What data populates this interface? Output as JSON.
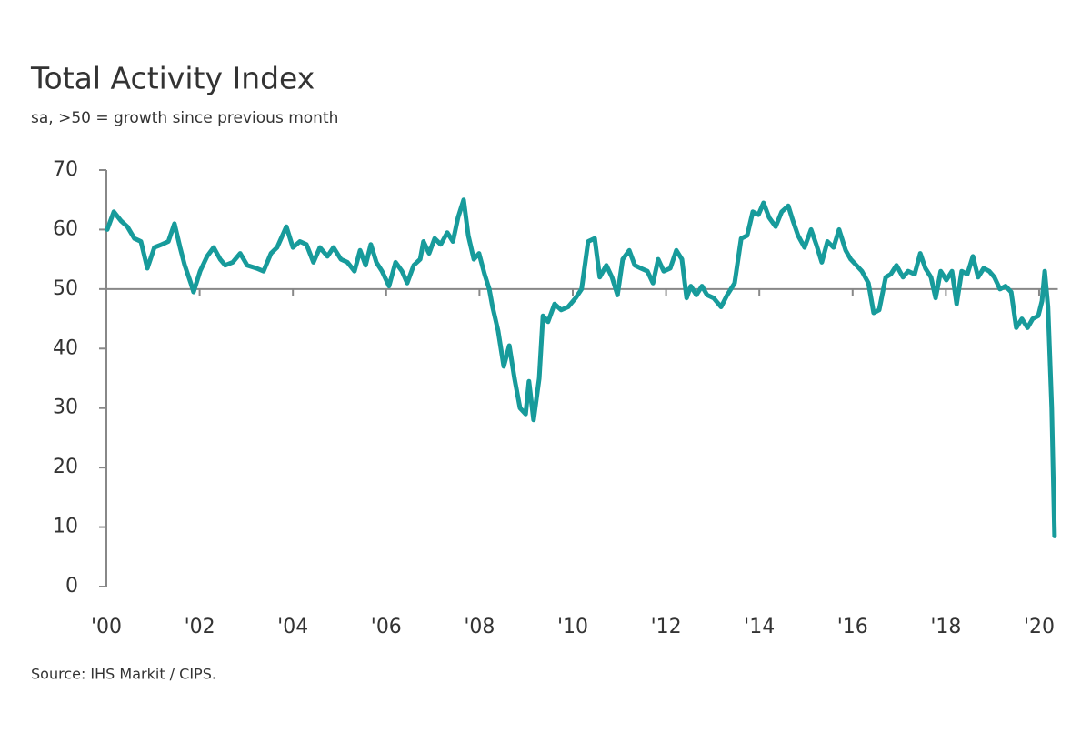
{
  "chart_data": {
    "type": "line",
    "title": "Total Activity Index",
    "subtitle": "sa, >50 = growth since previous month",
    "source": "Source: IHS Markit / CIPS.",
    "color": "#179b9b",
    "baseline": 50,
    "x": [
      2000.02,
      2000.16,
      2000.31,
      2000.45,
      2000.6,
      2000.74,
      2000.88,
      2001.03,
      2001.19,
      2001.33,
      2001.46,
      2001.58,
      2001.68,
      2001.81,
      2001.87,
      2002.01,
      2002.16,
      2002.3,
      2002.44,
      2002.55,
      2002.71,
      2002.87,
      2003.02,
      2003.22,
      2003.37,
      2003.53,
      2003.66,
      2003.86,
      2004.0,
      2004.15,
      2004.29,
      2004.44,
      2004.58,
      2004.74,
      2004.87,
      2005.03,
      2005.17,
      2005.32,
      2005.44,
      2005.56,
      2005.67,
      2005.79,
      2005.91,
      2006.06,
      2006.2,
      2006.34,
      2006.45,
      2006.59,
      2006.73,
      2006.8,
      2006.92,
      2007.04,
      2007.17,
      2007.31,
      2007.43,
      2007.54,
      2007.66,
      2007.76,
      2007.88,
      2007.99,
      2008.11,
      2008.21,
      2008.28,
      2008.4,
      2008.52,
      2008.64,
      2008.75,
      2008.87,
      2008.99,
      2009.06,
      2009.16,
      2009.28,
      2009.36,
      2009.47,
      2009.61,
      2009.75,
      2009.9,
      2010.06,
      2010.19,
      2010.33,
      2010.47,
      2010.58,
      2010.72,
      2010.84,
      2010.96,
      2011.07,
      2011.21,
      2011.33,
      2011.46,
      2011.6,
      2011.72,
      2011.83,
      2011.95,
      2012.09,
      2012.22,
      2012.34,
      2012.44,
      2012.53,
      2012.65,
      2012.77,
      2012.88,
      2013.02,
      2013.18,
      2013.31,
      2013.47,
      2013.61,
      2013.74,
      2013.86,
      2013.98,
      2014.09,
      2014.21,
      2014.35,
      2014.48,
      2014.62,
      2014.72,
      2014.83,
      2014.97,
      2015.11,
      2015.22,
      2015.34,
      2015.46,
      2015.59,
      2015.71,
      2015.85,
      2015.96,
      2016.08,
      2016.2,
      2016.34,
      2016.45,
      2016.57,
      2016.71,
      2016.82,
      2016.94,
      2017.08,
      2017.19,
      2017.33,
      2017.45,
      2017.56,
      2017.68,
      2017.78,
      2017.89,
      2018.01,
      2018.13,
      2018.23,
      2018.34,
      2018.46,
      2018.58,
      2018.69,
      2018.81,
      2018.93,
      2019.04,
      2019.16,
      2019.28,
      2019.4,
      2019.51,
      2019.63,
      2019.75,
      2019.86,
      2019.98,
      2020.06,
      2020.12,
      2020.19,
      2020.27,
      2020.33
    ],
    "values": [
      60,
      63,
      61.5,
      60.5,
      58.5,
      58,
      53.5,
      57,
      57.5,
      58,
      61,
      57,
      54,
      51,
      49.5,
      53,
      55.5,
      57,
      55,
      54,
      54.5,
      56,
      54,
      53.5,
      53,
      56,
      57,
      60.5,
      57,
      58,
      57.5,
      54.5,
      57,
      55.5,
      57,
      55,
      54.5,
      53,
      56.5,
      54,
      57.5,
      54.5,
      53,
      50.5,
      54.5,
      53,
      51,
      54,
      55,
      58,
      56,
      58.5,
      57.5,
      59.5,
      58,
      62,
      65,
      59,
      55,
      56,
      52.5,
      50,
      47,
      43,
      37,
      40.5,
      35,
      30,
      29,
      34.5,
      28,
      35,
      45.5,
      44.5,
      47.5,
      46.5,
      47,
      48.5,
      50,
      58,
      58.5,
      52,
      54,
      52,
      49,
      55,
      56.5,
      54,
      53.5,
      53,
      51,
      55,
      53,
      53.5,
      56.5,
      55,
      48.5,
      50.5,
      49,
      50.5,
      49,
      48.5,
      47,
      49,
      51,
      58.5,
      59,
      63,
      62.5,
      64.5,
      62,
      60.5,
      63,
      64,
      61.5,
      59,
      57,
      60,
      57.5,
      54.5,
      58,
      57,
      60,
      56.5,
      55,
      54,
      53,
      51,
      46,
      46.5,
      52,
      52.5,
      54,
      52,
      53,
      52.5,
      56,
      53.5,
      52,
      48.5,
      53,
      51.5,
      53,
      47.5,
      53,
      52.5,
      55.5,
      52,
      53.5,
      53,
      52,
      50,
      50.5,
      49.5,
      43.5,
      45,
      43.5,
      45,
      45.5,
      48,
      53,
      47,
      30,
      8.5
    ],
    "xlim": [
      2000,
      2020.4
    ],
    "ylim": [
      0,
      70
    ],
    "yticks": [
      0,
      10,
      20,
      30,
      40,
      50,
      60,
      70
    ],
    "xticks": [
      {
        "value": 2000,
        "label": "'00"
      },
      {
        "value": 2002,
        "label": "'02"
      },
      {
        "value": 2004,
        "label": "'04"
      },
      {
        "value": 2006,
        "label": "'06"
      },
      {
        "value": 2008,
        "label": "'08"
      },
      {
        "value": 2010,
        "label": "'10"
      },
      {
        "value": 2012,
        "label": "'12"
      },
      {
        "value": 2014,
        "label": "'14"
      },
      {
        "value": 2016,
        "label": "'16"
      },
      {
        "value": 2018,
        "label": "'18"
      },
      {
        "value": 2020,
        "label": "'20"
      }
    ]
  }
}
